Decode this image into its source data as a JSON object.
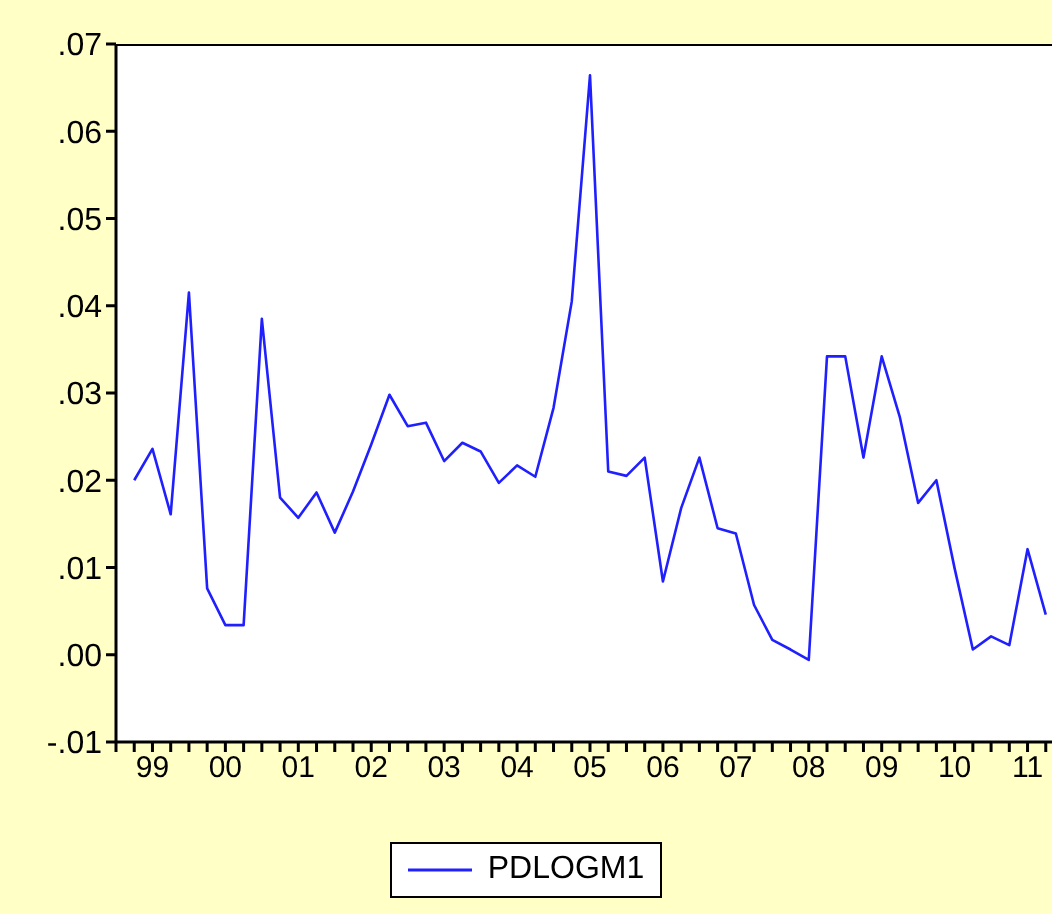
{
  "chart_data": {
    "type": "line",
    "categories": [
      null,
      "99",
      null,
      null,
      null,
      "00",
      null,
      null,
      null,
      "01",
      null,
      null,
      null,
      "02",
      null,
      null,
      null,
      "03",
      null,
      null,
      null,
      "04",
      null,
      null,
      null,
      "05",
      null,
      null,
      null,
      "06",
      null,
      null,
      null,
      "07",
      null,
      null,
      null,
      "08",
      null,
      null,
      null,
      "09",
      null,
      null,
      null,
      "10",
      null,
      null,
      null,
      "11",
      null
    ],
    "series": [
      {
        "name": "PDLOGM1",
        "color": "#2020ff",
        "values": [
          0.02,
          0.0236,
          0.0161,
          0.0415,
          0.0076,
          0.0034,
          0.0034,
          0.0385,
          0.018,
          0.0157,
          0.0186,
          0.014,
          0.0187,
          0.0241,
          0.0298,
          0.0262,
          0.0266,
          0.0222,
          0.0243,
          0.0233,
          0.0197,
          0.0217,
          0.0204,
          0.0283,
          0.0405,
          0.0664,
          0.021,
          0.0205,
          0.0226,
          0.0084,
          0.0168,
          0.0226,
          0.0145,
          0.0139,
          0.0057,
          0.0017,
          0.0006,
          -0.0006,
          0.0342,
          0.0342,
          0.0226,
          0.0342,
          0.0272,
          0.0174,
          0.02,
          0.0099,
          0.0006,
          0.0021,
          0.0011,
          0.0121,
          0.0046
        ]
      }
    ],
    "ylim": [
      -0.01,
      0.07
    ],
    "yticks": [
      {
        "value": -0.01,
        "label": "-.01"
      },
      {
        "value": 0,
        "label": ".00"
      },
      {
        "value": 0.01,
        "label": ".01"
      },
      {
        "value": 0.02,
        "label": ".02"
      },
      {
        "value": 0.03,
        "label": ".03"
      },
      {
        "value": 0.04,
        "label": ".04"
      },
      {
        "value": 0.05,
        "label": ".05"
      },
      {
        "value": 0.06,
        "label": ".06"
      },
      {
        "value": 0.07,
        "label": ".07"
      }
    ],
    "legend": "bottom",
    "line_style": "solid"
  }
}
